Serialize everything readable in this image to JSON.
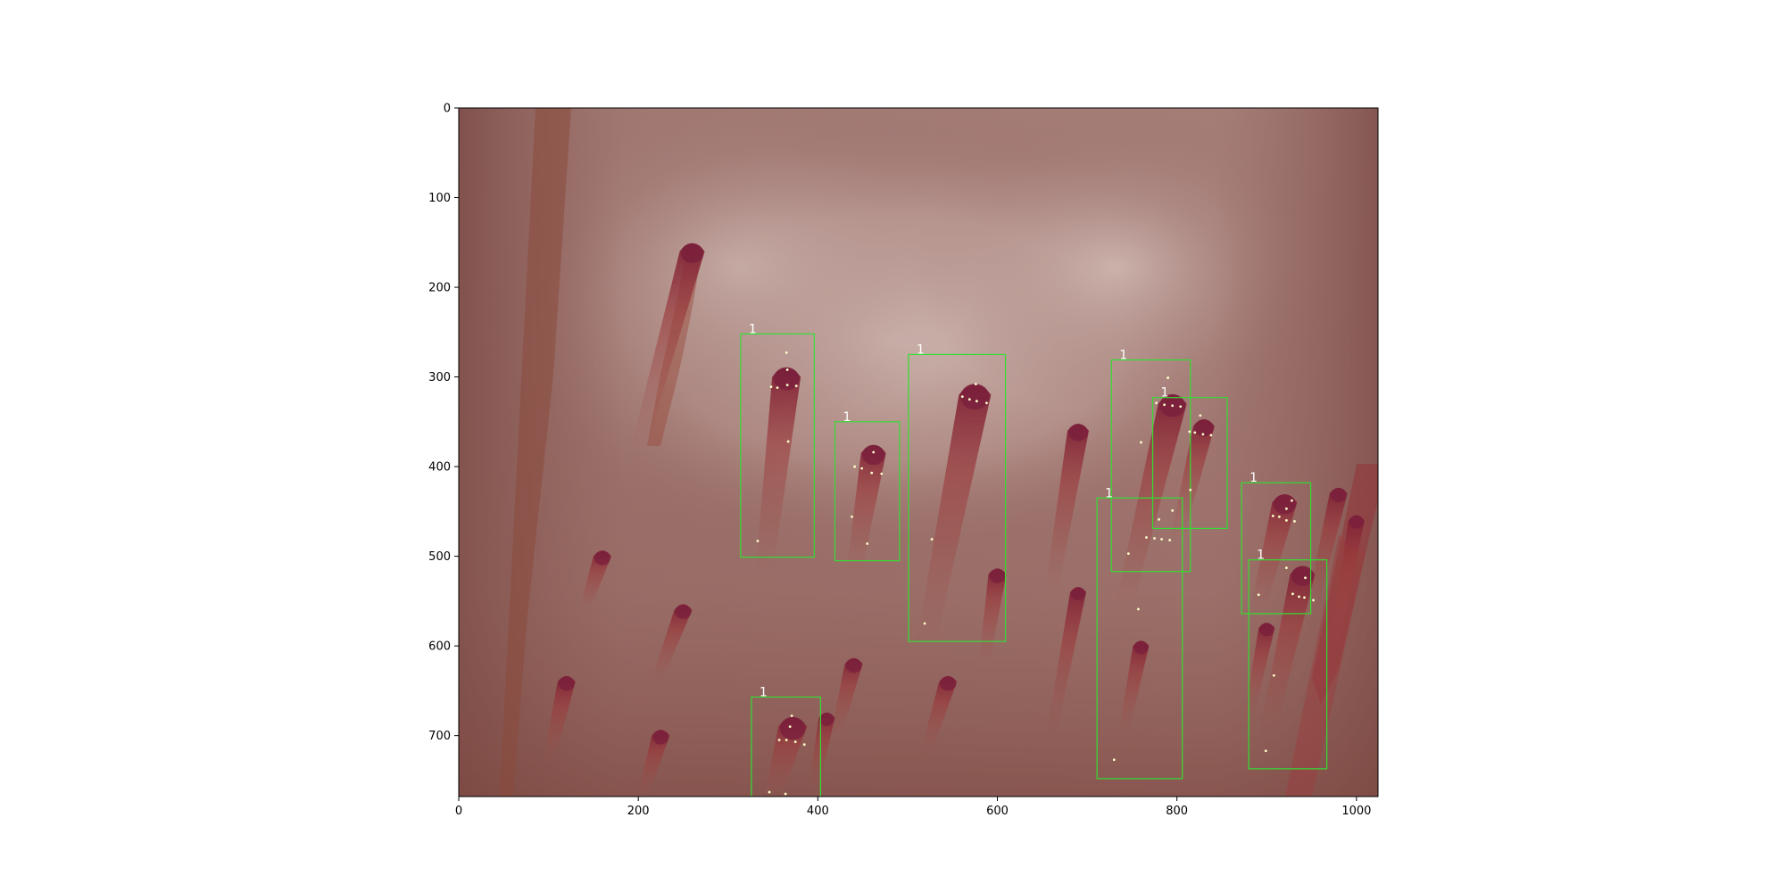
{
  "figure": {
    "title": "",
    "xlabel": "",
    "ylabel": "",
    "xlim": [
      0,
      1024
    ],
    "ylim": [
      768,
      0
    ],
    "x_ticks": [
      {
        "value": 0,
        "label": "0"
      },
      {
        "value": 200,
        "label": "200"
      },
      {
        "value": 400,
        "label": "400"
      },
      {
        "value": 600,
        "label": "600"
      },
      {
        "value": 800,
        "label": "800"
      },
      {
        "value": 1000,
        "label": "1000"
      }
    ],
    "y_ticks": [
      {
        "value": 0,
        "label": "0"
      },
      {
        "value": 100,
        "label": "100"
      },
      {
        "value": 200,
        "label": "200"
      },
      {
        "value": 300,
        "label": "300"
      },
      {
        "value": 400,
        "label": "400"
      },
      {
        "value": 500,
        "label": "500"
      },
      {
        "value": 600,
        "label": "600"
      },
      {
        "value": 700,
        "label": "700"
      }
    ]
  },
  "image": {
    "description_colors": {
      "background": "#a57d77",
      "highlight": "#e1d4cd",
      "capillary": "#8e2a2f",
      "capillary_tip": "#78203a"
    }
  },
  "detections": {
    "box_color": "#33dd33",
    "keypoint_color": "#ffffcc",
    "items": [
      {
        "label": "1",
        "x0": 314,
        "y0": 252,
        "x1": 396,
        "y1": 501,
        "keypoints": [
          [
            365,
            273
          ],
          [
            348,
            311
          ],
          [
            355,
            312
          ],
          [
            366,
            309
          ],
          [
            376,
            310
          ],
          [
            367,
            372
          ],
          [
            333,
            483
          ],
          [
            366,
            292
          ]
        ]
      },
      {
        "label": "1",
        "x0": 419,
        "y0": 350,
        "x1": 491,
        "y1": 505,
        "keypoints": [
          [
            462,
            384
          ],
          [
            441,
            400
          ],
          [
            449,
            402
          ],
          [
            460,
            407
          ],
          [
            471,
            408
          ],
          [
            438,
            456
          ],
          [
            455,
            486
          ]
        ]
      },
      {
        "label": "1",
        "x0": 501,
        "y0": 275,
        "x1": 609,
        "y1": 595,
        "keypoints": [
          [
            576,
            308
          ],
          [
            561,
            322
          ],
          [
            569,
            325
          ],
          [
            577,
            327
          ],
          [
            588,
            329
          ],
          [
            527,
            481
          ],
          [
            519,
            575
          ]
        ]
      },
      {
        "label": "1",
        "x0": 727,
        "y0": 281,
        "x1": 815,
        "y1": 517,
        "keypoints": [
          [
            790,
            301
          ],
          [
            777,
            329
          ],
          [
            786,
            331
          ],
          [
            795,
            332
          ],
          [
            804,
            333
          ],
          [
            760,
            373
          ],
          [
            746,
            497
          ]
        ]
      },
      {
        "label": "1",
        "x0": 773,
        "y0": 323,
        "x1": 856,
        "y1": 469,
        "keypoints": [
          [
            826,
            343
          ],
          [
            814,
            361
          ],
          [
            820,
            362
          ],
          [
            829,
            364
          ],
          [
            838,
            365
          ],
          [
            815,
            426
          ]
        ]
      },
      {
        "label": "1",
        "x0": 711,
        "y0": 435,
        "x1": 806,
        "y1": 748,
        "keypoints": [
          [
            795,
            449
          ],
          [
            780,
            459
          ],
          [
            766,
            479
          ],
          [
            775,
            480
          ],
          [
            783,
            481
          ],
          [
            792,
            482
          ],
          [
            757,
            559
          ],
          [
            730,
            727
          ]
        ]
      },
      {
        "label": "1",
        "x0": 872,
        "y0": 418,
        "x1": 949,
        "y1": 564,
        "keypoints": [
          [
            928,
            438
          ],
          [
            907,
            455
          ],
          [
            914,
            456
          ],
          [
            922,
            460
          ],
          [
            931,
            461
          ],
          [
            922,
            447
          ]
        ]
      },
      {
        "label": "1",
        "x0": 880,
        "y0": 504,
        "x1": 967,
        "y1": 737,
        "keypoints": [
          [
            943,
            524
          ],
          [
            922,
            513
          ],
          [
            929,
            542
          ],
          [
            936,
            545
          ],
          [
            942,
            546
          ],
          [
            952,
            549
          ],
          [
            891,
            543
          ],
          [
            908,
            633
          ],
          [
            899,
            717
          ]
        ]
      },
      {
        "label": "1",
        "x0": 326,
        "y0": 657,
        "x1": 403,
        "y1": 770,
        "keypoints": [
          [
            371,
            678
          ],
          [
            357,
            705
          ],
          [
            365,
            705
          ],
          [
            375,
            707
          ],
          [
            385,
            710
          ],
          [
            369,
            690
          ],
          [
            346,
            763
          ],
          [
            364,
            765
          ]
        ]
      }
    ]
  }
}
